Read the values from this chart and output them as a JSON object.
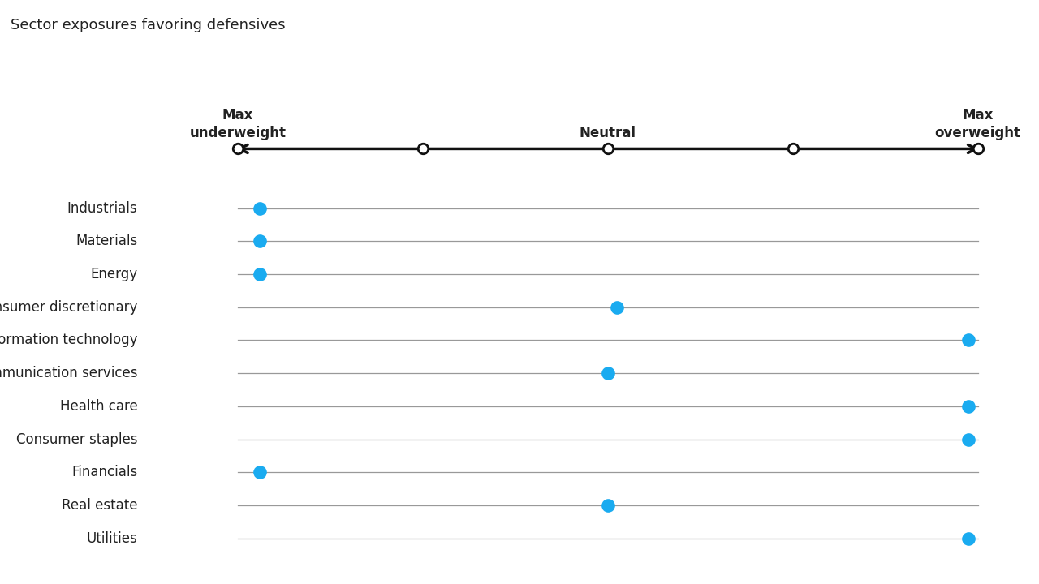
{
  "title": "Sector exposures favoring defensives",
  "sectors": [
    "Industrials",
    "Materials",
    "Energy",
    "Consumer discretionary",
    "Information technology",
    "Communication services",
    "Health care",
    "Consumer staples",
    "Financials",
    "Real estate",
    "Utilities"
  ],
  "dot_positions": [
    0.12,
    0.12,
    0.12,
    2.05,
    3.95,
    2.0,
    3.95,
    3.95,
    0.12,
    2.0,
    3.95
  ],
  "scale_min": 0,
  "scale_max": 4,
  "axis_ticks": [
    0,
    1,
    2,
    3,
    4
  ],
  "label_left": "Max\nunderweight",
  "label_center": "Neutral",
  "label_right": "Max\noverweight",
  "dot_color": "#1AABF0",
  "line_color": "#999999",
  "axis_color": "#111111",
  "bg_color": "#ffffff",
  "text_color": "#222222",
  "title_fontsize": 13,
  "sector_fontsize": 12,
  "header_fontsize": 12
}
